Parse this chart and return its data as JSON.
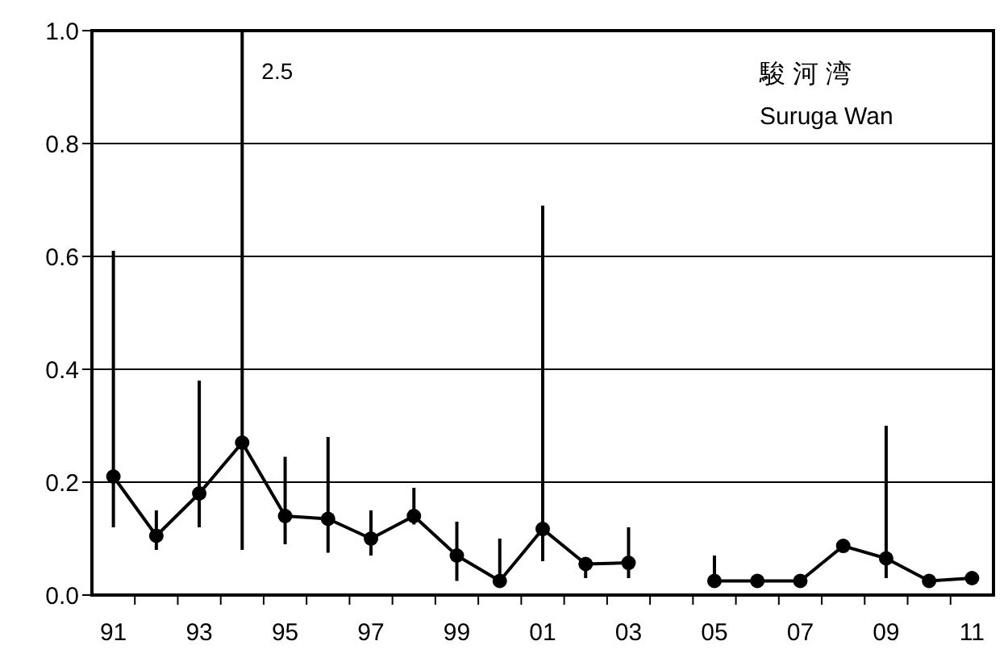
{
  "chart_data": {
    "type": "line",
    "title": "駿 河 湾",
    "subtitle": "Suruga Wan",
    "categories": [
      "91",
      null,
      "93",
      null,
      "95",
      null,
      "97",
      null,
      "99",
      null,
      "01",
      null,
      "03",
      null,
      "05",
      null,
      "07",
      null,
      "09",
      null,
      "11"
    ],
    "series": [
      {
        "color": "#000000",
        "values": [
          0.21,
          0.105,
          0.18,
          0.27,
          0.14,
          0.135,
          0.1,
          0.14,
          0.07,
          0.025,
          0.117,
          0.055,
          0.057,
          null,
          0.025,
          0.025,
          0.025,
          0.087,
          0.065,
          0.025,
          0.03
        ],
        "errors": [
          [
            0.12,
            0.61
          ],
          [
            0.08,
            0.15
          ],
          [
            0.12,
            0.38
          ],
          [
            0.08,
            1.0
          ],
          [
            0.09,
            0.245
          ],
          [
            0.075,
            0.28
          ],
          [
            0.07,
            0.15
          ],
          [
            0.125,
            0.19
          ],
          [
            0.025,
            0.13
          ],
          [
            0.025,
            0.1
          ],
          [
            0.06,
            0.69
          ],
          [
            0.03,
            0.055
          ],
          [
            0.03,
            0.12
          ],
          null,
          [
            0.025,
            0.07
          ],
          null,
          null,
          null,
          [
            0.03,
            0.3
          ],
          null,
          null
        ]
      }
    ],
    "annotations": [
      "2.5"
    ],
    "ylim": [
      0,
      1.0
    ],
    "yticks": [
      {
        "value": 0,
        "label": "0.0"
      },
      0.2,
      0.4,
      0.6,
      0.8,
      {
        "value": 1.0,
        "label": "1.0"
      }
    ],
    "grid": "y",
    "marker": "circle",
    "line_style": "solid"
  }
}
